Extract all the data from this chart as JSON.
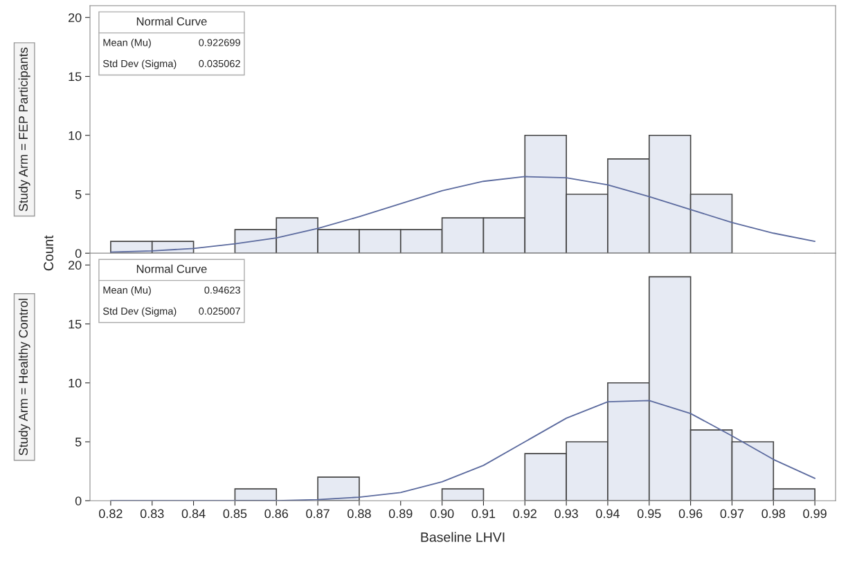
{
  "chart_data": [
    {
      "type": "histogram",
      "title": "Study Arm = FEP Participants",
      "ylabel": "Count",
      "bins": [
        0.82,
        0.83,
        0.84,
        0.85,
        0.86,
        0.87,
        0.88,
        0.89,
        0.9,
        0.91,
        0.92,
        0.93,
        0.94,
        0.95,
        0.96,
        0.97,
        0.98,
        0.99
      ],
      "values": [
        1,
        1,
        0,
        2,
        3,
        2,
        2,
        2,
        3,
        3,
        10,
        5,
        8,
        10,
        5,
        0,
        0
      ],
      "color": "#e6eaf3",
      "series": [
        {
          "type": "line",
          "color": "#5b6a9e",
          "x": [
            0.82,
            0.83,
            0.84,
            0.85,
            0.86,
            0.87,
            0.88,
            0.89,
            0.9,
            0.91,
            0.92,
            0.93,
            0.94,
            0.95,
            0.96,
            0.97,
            0.98,
            0.99
          ],
          "values": [
            0.1,
            0.2,
            0.4,
            0.8,
            1.3,
            2.1,
            3.1,
            4.2,
            5.3,
            6.1,
            6.5,
            6.4,
            5.8,
            4.8,
            3.7,
            2.6,
            1.7,
            1.0
          ]
        }
      ],
      "annotations": [
        "Normal Curve",
        "Mean (Mu)",
        "0.922699",
        "Std Dev (Sigma)",
        "0.035062"
      ],
      "xlim": [
        0.815,
        0.995
      ],
      "xticks": [
        0.82,
        0.83,
        0.84,
        0.85,
        0.86,
        0.87,
        0.88,
        0.89,
        0.9,
        0.91,
        0.92,
        0.93,
        0.94,
        0.95,
        0.96,
        0.97,
        0.98,
        0.99
      ],
      "ylim": [
        0,
        21
      ],
      "yticks": [
        0,
        5,
        10,
        15,
        20
      ],
      "tick_labels": "y",
      "grid": false,
      "legend": false
    },
    {
      "type": "histogram",
      "title": "Study Arm = Healthy Control",
      "xlabel": "Baseline LHVI",
      "bins": [
        0.82,
        0.83,
        0.84,
        0.85,
        0.86,
        0.87,
        0.88,
        0.89,
        0.9,
        0.91,
        0.92,
        0.93,
        0.94,
        0.95,
        0.96,
        0.97,
        0.98,
        0.99
      ],
      "values": [
        0,
        0,
        0,
        1,
        0,
        2,
        0,
        0,
        1,
        0,
        4,
        5,
        10,
        19,
        6,
        5,
        1
      ],
      "color": "#e6eaf3",
      "series": [
        {
          "type": "line",
          "color": "#5b6a9e",
          "x": [
            0.82,
            0.85,
            0.86,
            0.87,
            0.88,
            0.89,
            0.9,
            0.91,
            0.92,
            0.93,
            0.94,
            0.95,
            0.96,
            0.97,
            0.98,
            0.99
          ],
          "values": [
            0.0,
            0.0,
            0.0,
            0.1,
            0.3,
            0.7,
            1.6,
            3.0,
            5.0,
            7.0,
            8.4,
            8.5,
            7.4,
            5.5,
            3.5,
            1.9
          ]
        }
      ],
      "annotations": [
        "Normal Curve",
        "Mean (Mu)",
        "0.94623",
        "Std Dev (Sigma)",
        "0.025007"
      ],
      "xlim": [
        0.815,
        0.995
      ],
      "xticks": [
        0.82,
        0.83,
        0.84,
        0.85,
        0.86,
        0.87,
        0.88,
        0.89,
        {
          "value": 0.9,
          "label": "0.90"
        },
        0.91,
        0.92,
        0.93,
        0.94,
        0.95,
        0.96,
        0.97,
        0.98,
        0.99
      ],
      "ylim": [
        0,
        21
      ],
      "yticks": [
        0,
        5,
        10,
        15,
        20
      ],
      "grid": false,
      "legend": false
    }
  ]
}
